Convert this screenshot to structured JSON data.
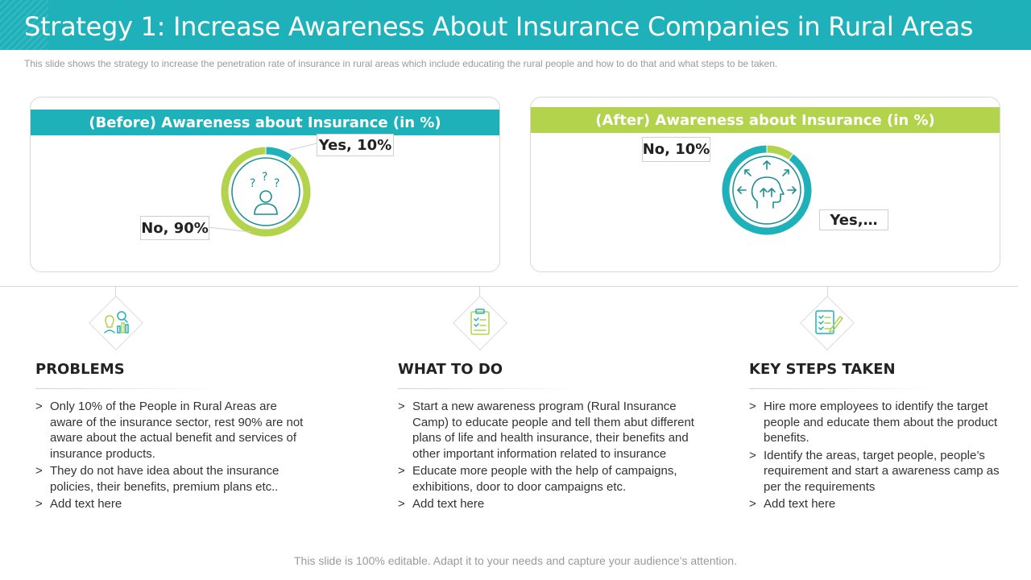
{
  "header": {
    "title": "Strategy 1: Increase Awareness About Insurance Companies in Rural Areas",
    "subtitle": "This slide shows the strategy to increase the penetration rate of insurance  in rural areas which include educating the rural people  and how to do that and what steps to be taken."
  },
  "chart_data": [
    {
      "type": "pie",
      "title": "(Before) Awareness about Insurance (in %)",
      "categories": [
        "Yes",
        "No"
      ],
      "values": [
        10,
        90
      ],
      "data_labels": [
        "Yes, 10%",
        "No, 90%"
      ],
      "colors": [
        "#1fb1b9",
        "#b3d34d"
      ]
    },
    {
      "type": "pie",
      "title": "(After) Awareness about Insurance (in %)",
      "categories": [
        "No",
        "Yes"
      ],
      "values": [
        10,
        90
      ],
      "data_labels": [
        "No, 10%",
        "Yes,…"
      ],
      "colors": [
        "#b3d34d",
        "#1fb1b9"
      ]
    }
  ],
  "columns": [
    {
      "icon": "bulb-chart-icon",
      "heading": "PROBLEMS",
      "items": [
        "Only  10% of the People in Rural Areas are aware of the insurance sector, rest 90% are not aware about the actual benefit and services of insurance products.",
        "They do not have idea about the insurance policies, their benefits, premium plans etc..",
        "Add text here"
      ]
    },
    {
      "icon": "clipboard-checklist-icon",
      "heading": "WHAT TO DO",
      "items": [
        "Start a new awareness program (Rural Insurance Camp) to educate people and tell them abut different plans of life and health insurance, their benefits and other important information related to insurance",
        "Educate more people with the help of campaigns, exhibitions, door to door campaigns etc.",
        "Add text here"
      ]
    },
    {
      "icon": "checklist-pen-icon",
      "heading": "KEY STEPS TAKEN",
      "items": [
        "Hire more employees to identify the target people and educate them about the product benefits.",
        "Identify the areas, target people, people’s requirement and start a awareness camp as per the requirements",
        "Add text here"
      ]
    }
  ],
  "bullet_symbol": ">",
  "footer": "This slide is 100% editable. Adapt it to your needs and capture your audience’s attention.",
  "colors": {
    "accent_teal": "#1fb1b9",
    "accent_green": "#b3d34d"
  }
}
